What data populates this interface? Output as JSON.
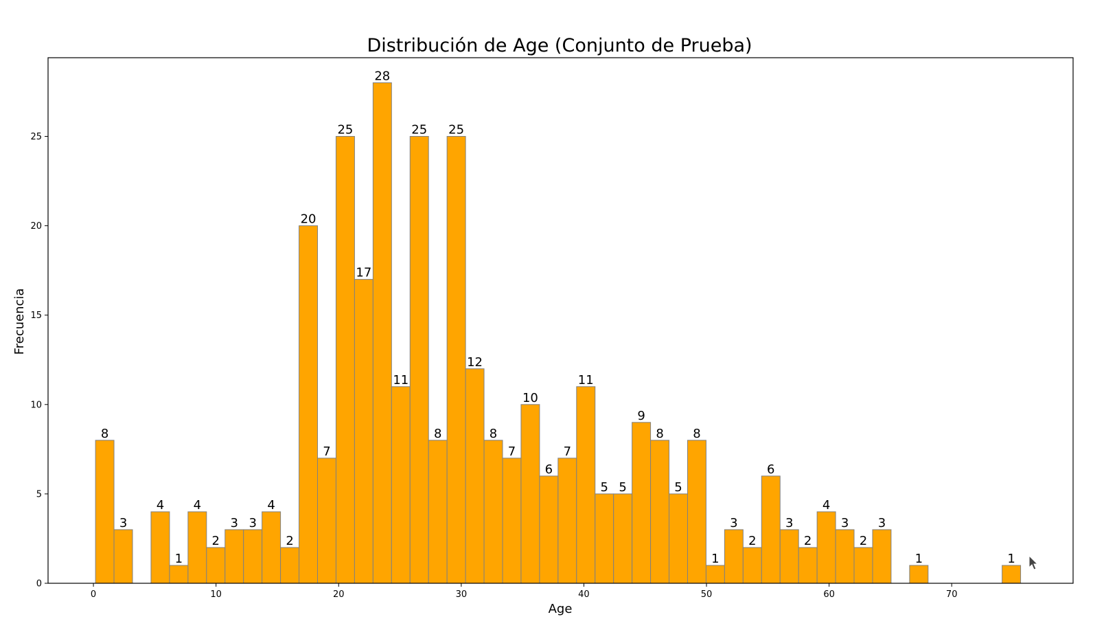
{
  "chart_data": {
    "type": "bar",
    "title": "Distribución de Age (Conjunto de Prueba)",
    "xlabel": "Age",
    "ylabel": "Frecuencia",
    "xlim": [
      -3.7,
      79.9
    ],
    "ylim": [
      0,
      29.4
    ],
    "xticks": [
      0,
      10,
      20,
      30,
      40,
      50,
      60,
      70
    ],
    "yticks": [
      0,
      5,
      10,
      15,
      20,
      25
    ],
    "bar_color": "#FFA500",
    "edge_color": "#808080",
    "bin_width": 1.509,
    "bin_start": 0.17,
    "values": [
      8,
      3,
      0,
      4,
      1,
      4,
      2,
      3,
      3,
      4,
      2,
      20,
      7,
      25,
      17,
      28,
      11,
      25,
      8,
      25,
      12,
      8,
      7,
      10,
      6,
      7,
      11,
      5,
      5,
      9,
      8,
      5,
      8,
      1,
      3,
      2,
      6,
      3,
      2,
      4,
      3,
      2,
      3,
      0,
      1,
      0,
      0,
      0,
      0,
      1
    ],
    "grid": false,
    "legend": "none"
  },
  "icons": {
    "cursor": "mouse-pointer-icon"
  }
}
